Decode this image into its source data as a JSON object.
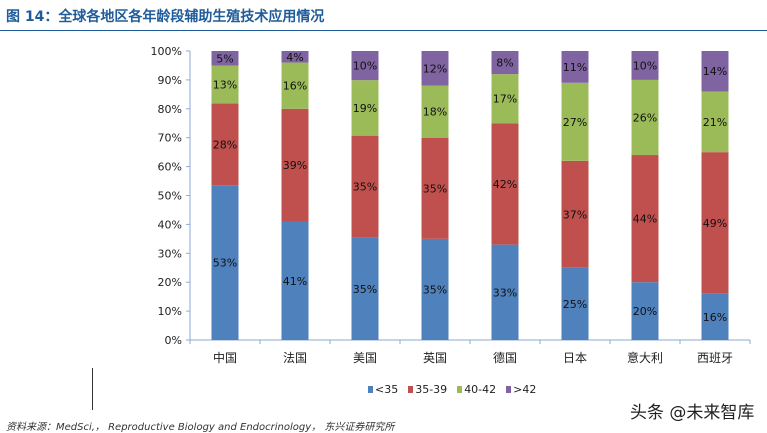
{
  "title": "图 14：全球各地区各年龄段辅助生殖技术应用情况",
  "source": "资料来源：MedSci,， Reproductive Biology and Endocrinology， 东兴证券研究所",
  "watermark": "头条 @未来智库",
  "chart_data": {
    "type": "bar",
    "stacked": true,
    "percent": true,
    "categories": [
      "中国",
      "法国",
      "美国",
      "英国",
      "德国",
      "日本",
      "意大利",
      "西班牙"
    ],
    "series": [
      {
        "name": "<35",
        "color": "#4f81bd",
        "values": [
          53,
          41,
          35,
          35,
          33,
          25,
          20,
          16
        ]
      },
      {
        "name": "35-39",
        "color": "#c0504d",
        "values": [
          28,
          39,
          35,
          35,
          42,
          37,
          44,
          49
        ]
      },
      {
        "name": "40-42",
        "color": "#9bbb59",
        "values": [
          13,
          16,
          19,
          18,
          17,
          27,
          26,
          21
        ]
      },
      {
        "name": ">42",
        "color": "#8064a2",
        "values": [
          5,
          4,
          10,
          12,
          8,
          11,
          10,
          14
        ]
      }
    ],
    "ylim": [
      0,
      100
    ],
    "yticks": [
      "0%",
      "10%",
      "20%",
      "30%",
      "40%",
      "50%",
      "60%",
      "70%",
      "80%",
      "90%",
      "100%"
    ],
    "legend": "bottom",
    "grid": false
  }
}
